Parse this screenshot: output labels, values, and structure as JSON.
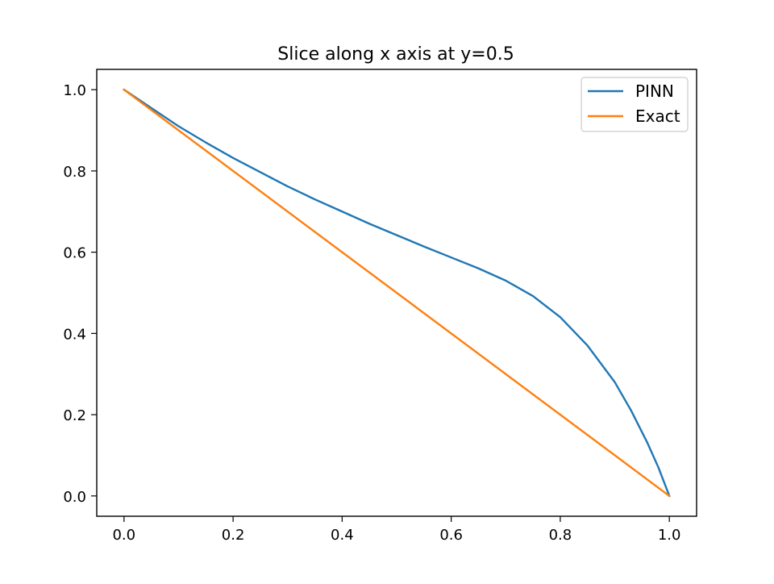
{
  "chart_data": {
    "type": "line",
    "title": "Slice along x axis at y=0.5",
    "xlabel": "",
    "ylabel": "",
    "xlim": [
      -0.05,
      1.05
    ],
    "ylim": [
      -0.05,
      1.05
    ],
    "xticks": [
      0.0,
      0.2,
      0.4,
      0.6,
      0.8,
      1.0
    ],
    "xtick_labels": [
      "0.0",
      "0.2",
      "0.4",
      "0.6",
      "0.8",
      "1.0"
    ],
    "yticks": [
      0.0,
      0.2,
      0.4,
      0.6,
      0.8,
      1.0
    ],
    "ytick_labels": [
      "0.0",
      "0.2",
      "0.4",
      "0.6",
      "0.8",
      "1.0"
    ],
    "grid": false,
    "legend_position": "upper right",
    "series": [
      {
        "name": "PINN",
        "color": "#1f77b4",
        "x": [
          0.0,
          0.05,
          0.1,
          0.15,
          0.2,
          0.25,
          0.3,
          0.35,
          0.4,
          0.45,
          0.5,
          0.55,
          0.6,
          0.65,
          0.7,
          0.75,
          0.8,
          0.85,
          0.9,
          0.93,
          0.96,
          0.98,
          1.0
        ],
        "y": [
          1.0,
          0.955,
          0.91,
          0.87,
          0.832,
          0.797,
          0.762,
          0.73,
          0.7,
          0.67,
          0.642,
          0.614,
          0.587,
          0.56,
          0.53,
          0.492,
          0.44,
          0.37,
          0.28,
          0.21,
          0.13,
          0.07,
          0.0
        ]
      },
      {
        "name": "Exact",
        "color": "#ff7f0e",
        "x": [
          0.0,
          1.0
        ],
        "y": [
          1.0,
          0.0
        ]
      }
    ]
  }
}
